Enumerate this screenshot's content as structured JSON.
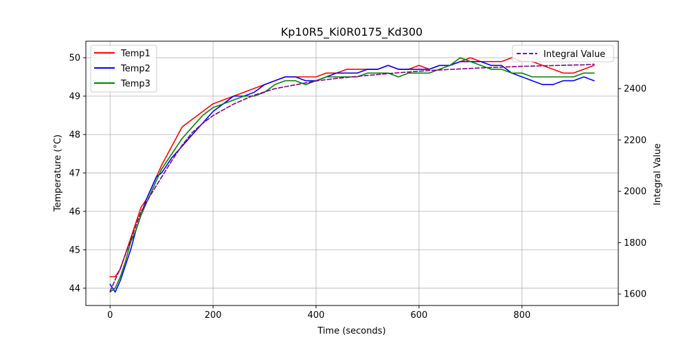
{
  "chart_data": {
    "type": "line",
    "title": "Kp10R5_Ki0R0175_Kd300",
    "xlabel": "Time (seconds)",
    "ylabel": "Temperature (°C)",
    "y2label": "Integral Value",
    "xlim": [
      -47,
      987
    ],
    "ylim": [
      43.55,
      50.43
    ],
    "y2lim": [
      1555,
      2585
    ],
    "xticks": [
      0,
      200,
      400,
      600,
      800
    ],
    "yticks": [
      44,
      45,
      46,
      47,
      48,
      49,
      50
    ],
    "y2ticks": [
      1600,
      1800,
      2000,
      2200,
      2400
    ],
    "grid": true,
    "legend_left": {
      "position": "upper-left",
      "entries": [
        "Temp1",
        "Temp2",
        "Temp3"
      ]
    },
    "legend_right": {
      "position": "upper-right",
      "entries": [
        "Integral Value"
      ]
    },
    "series": [
      {
        "name": "Temp1",
        "color": "#ff0000",
        "axis": "left",
        "x": [
          0,
          10,
          20,
          30,
          40,
          50,
          60,
          70,
          80,
          90,
          100,
          120,
          140,
          160,
          180,
          200,
          220,
          240,
          260,
          280,
          300,
          320,
          340,
          360,
          380,
          400,
          420,
          440,
          460,
          480,
          500,
          520,
          540,
          560,
          580,
          600,
          620,
          640,
          660,
          680,
          700,
          720,
          740,
          760,
          780,
          800,
          820,
          840,
          860,
          880,
          900,
          920,
          940
        ],
        "values": [
          44.3,
          44.3,
          44.5,
          44.9,
          45.3,
          45.7,
          46.1,
          46.3,
          46.6,
          46.9,
          47.2,
          47.7,
          48.2,
          48.4,
          48.6,
          48.8,
          48.9,
          49.0,
          49.1,
          49.2,
          49.3,
          49.4,
          49.5,
          49.5,
          49.5,
          49.5,
          49.6,
          49.6,
          49.7,
          49.7,
          49.7,
          49.7,
          49.8,
          49.7,
          49.7,
          49.8,
          49.7,
          49.8,
          49.8,
          49.9,
          50.0,
          49.9,
          49.9,
          49.9,
          50.0,
          49.9,
          49.9,
          49.8,
          49.7,
          49.6,
          49.6,
          49.7,
          49.8
        ]
      },
      {
        "name": "Temp2",
        "color": "#0000ff",
        "axis": "left",
        "x": [
          0,
          10,
          20,
          30,
          40,
          50,
          60,
          70,
          80,
          90,
          100,
          120,
          140,
          160,
          180,
          200,
          220,
          240,
          260,
          280,
          300,
          320,
          340,
          360,
          380,
          400,
          420,
          440,
          460,
          480,
          500,
          520,
          540,
          560,
          580,
          600,
          620,
          640,
          660,
          680,
          700,
          720,
          740,
          760,
          780,
          800,
          820,
          840,
          860,
          880,
          900,
          920,
          940
        ],
        "values": [
          44.1,
          43.9,
          44.2,
          44.6,
          45.0,
          45.5,
          45.9,
          46.3,
          46.6,
          46.9,
          47.0,
          47.4,
          47.7,
          48.0,
          48.3,
          48.6,
          48.8,
          49.0,
          49.0,
          49.1,
          49.3,
          49.4,
          49.5,
          49.5,
          49.4,
          49.4,
          49.5,
          49.6,
          49.6,
          49.6,
          49.7,
          49.7,
          49.8,
          49.7,
          49.7,
          49.7,
          49.7,
          49.8,
          49.8,
          49.9,
          49.9,
          49.9,
          49.8,
          49.8,
          49.6,
          49.5,
          49.4,
          49.3,
          49.3,
          49.4,
          49.4,
          49.5,
          49.4
        ]
      },
      {
        "name": "Temp3",
        "color": "#008000",
        "axis": "left",
        "x": [
          0,
          10,
          20,
          30,
          40,
          50,
          60,
          70,
          80,
          90,
          100,
          120,
          140,
          160,
          180,
          200,
          220,
          240,
          260,
          280,
          300,
          320,
          340,
          360,
          380,
          400,
          420,
          440,
          460,
          480,
          500,
          520,
          540,
          560,
          580,
          600,
          620,
          640,
          660,
          680,
          700,
          720,
          740,
          760,
          780,
          800,
          820,
          840,
          860,
          880,
          900,
          920,
          940
        ],
        "values": [
          43.9,
          44.0,
          44.3,
          44.7,
          45.2,
          45.5,
          45.9,
          46.2,
          46.5,
          46.8,
          47.1,
          47.5,
          47.9,
          48.2,
          48.5,
          48.7,
          48.8,
          48.9,
          49.0,
          49.0,
          49.1,
          49.3,
          49.4,
          49.4,
          49.3,
          49.4,
          49.5,
          49.5,
          49.5,
          49.5,
          49.6,
          49.6,
          49.6,
          49.5,
          49.6,
          49.6,
          49.6,
          49.7,
          49.8,
          50.0,
          49.9,
          49.8,
          49.7,
          49.7,
          49.6,
          49.6,
          49.5,
          49.5,
          49.5,
          49.5,
          49.5,
          49.6,
          49.6
        ]
      },
      {
        "name": "Integral Value",
        "color": "#800080",
        "axis": "right",
        "dashed": true,
        "x": [
          0,
          20,
          40,
          60,
          80,
          100,
          120,
          140,
          160,
          180,
          200,
          240,
          280,
          320,
          360,
          400,
          440,
          480,
          520,
          560,
          600,
          640,
          680,
          720,
          760,
          800,
          840,
          880,
          920,
          940
        ],
        "values": [
          1610,
          1700,
          1810,
          1920,
          1990,
          2055,
          2120,
          2180,
          2230,
          2265,
          2295,
          2340,
          2375,
          2400,
          2415,
          2430,
          2440,
          2448,
          2455,
          2462,
          2468,
          2473,
          2477,
          2481,
          2484,
          2487,
          2489,
          2491,
          2493,
          2495
        ]
      }
    ]
  }
}
